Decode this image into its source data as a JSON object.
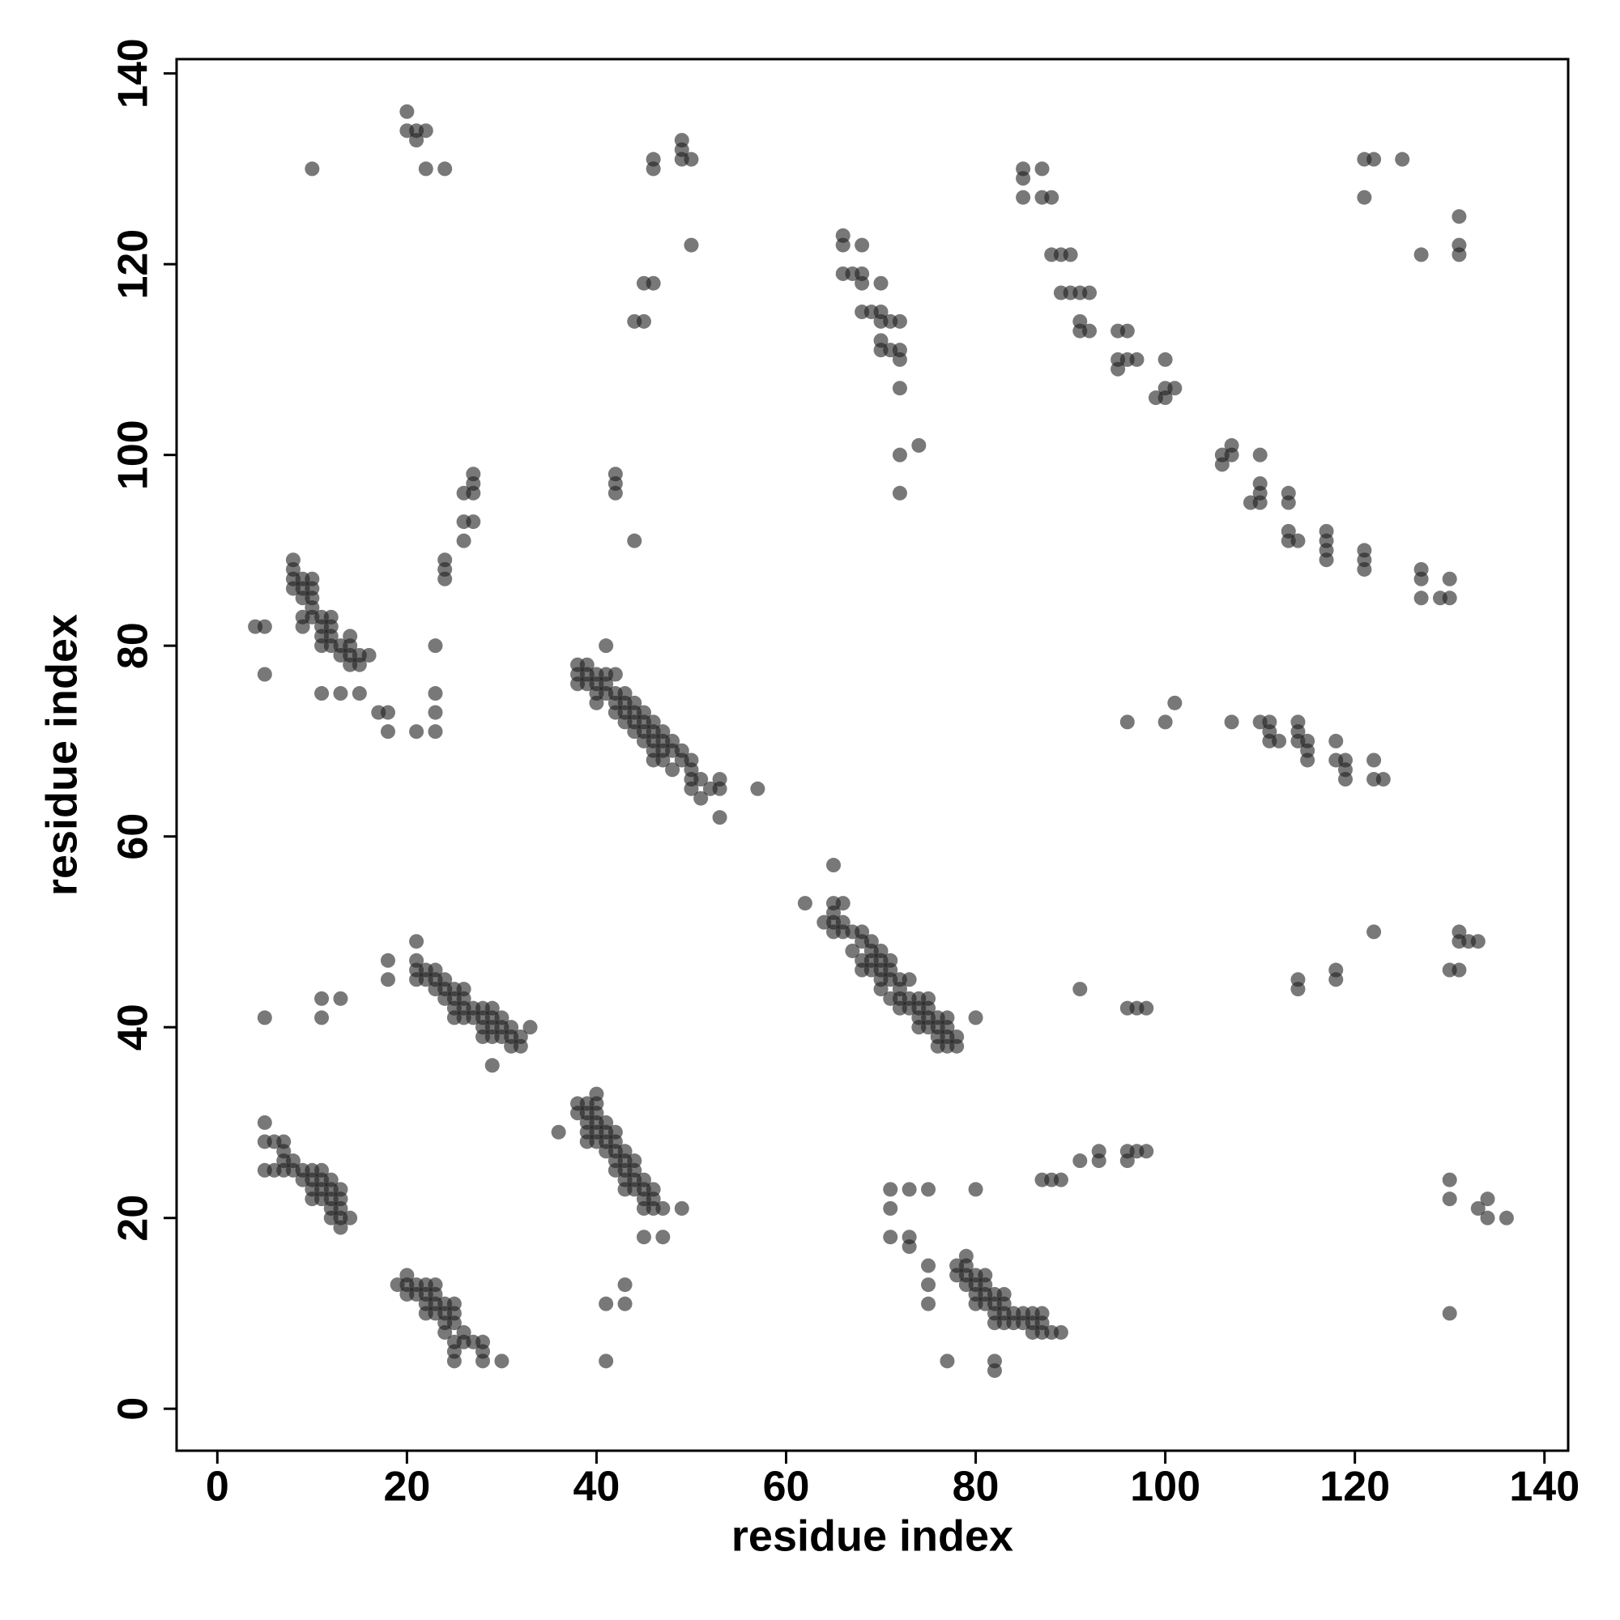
{
  "chart_data": {
    "type": "scatter",
    "xlabel": "residue index",
    "ylabel": "residue index",
    "xlim": [
      -4.3,
      142.5
    ],
    "ylim": [
      -4.4,
      141.5
    ],
    "xticks": [
      0,
      20,
      40,
      60,
      80,
      100,
      120,
      140
    ],
    "yticks": [
      0,
      20,
      40,
      60,
      80,
      100,
      120,
      140
    ],
    "grid": false,
    "series": [
      {
        "color": "rgba(30,30,30,0.6)",
        "x": [
          10,
          20,
          20,
          21,
          21,
          22,
          22,
          24,
          46,
          46,
          49,
          49,
          49,
          50,
          50,
          44,
          45,
          45,
          46,
          42,
          42,
          42,
          44,
          27,
          27,
          27,
          26,
          26,
          27,
          26,
          24,
          24,
          24,
          23,
          23,
          23,
          23,
          21,
          18,
          17,
          18,
          8,
          8,
          8,
          8,
          9,
          9,
          9,
          9,
          9,
          10,
          10,
          10,
          10,
          10,
          11,
          11,
          11,
          11,
          12,
          12,
          12,
          12,
          13,
          13,
          14,
          14,
          14,
          15,
          16,
          14,
          15,
          4,
          5,
          5,
          11,
          13,
          15,
          38,
          38,
          38,
          39,
          39,
          39,
          40,
          40,
          40,
          40,
          41,
          41,
          41,
          42,
          42,
          42,
          42,
          43,
          43,
          43,
          43,
          44,
          44,
          44,
          44,
          45,
          45,
          45,
          45,
          46,
          46,
          46,
          46,
          46,
          47,
          47,
          47,
          47,
          48,
          48,
          48,
          49,
          49,
          50,
          50,
          50,
          50,
          51,
          51,
          52,
          53,
          53,
          53,
          57,
          41,
          66,
          66,
          66,
          67,
          68,
          68,
          68,
          68,
          69,
          70,
          70,
          70,
          70,
          70,
          71,
          71,
          72,
          72,
          72,
          72,
          72,
          72,
          74,
          85,
          85,
          85,
          87,
          87,
          88,
          88,
          89,
          90,
          89,
          90,
          91,
          92,
          91,
          91,
          92,
          95,
          96,
          95,
          95,
          96,
          97,
          99,
          100,
          100,
          100,
          101,
          106,
          106,
          107,
          107,
          110,
          109,
          110,
          110,
          110,
          113,
          113,
          113,
          113,
          114,
          117,
          117,
          117,
          117,
          121,
          121,
          121,
          127,
          127,
          127,
          129,
          130,
          130,
          121,
          122,
          125,
          121,
          127,
          131,
          131,
          131,
          96,
          100,
          101,
          107,
          110,
          111,
          111,
          111,
          112,
          114,
          114,
          114,
          115,
          115,
          115,
          118,
          118,
          119,
          119,
          119,
          122,
          122,
          123,
          62,
          65,
          64,
          65,
          65,
          65,
          65,
          66,
          66,
          66,
          67,
          67,
          68,
          68,
          68,
          68,
          69,
          69,
          69,
          69,
          70,
          70,
          70,
          70,
          70,
          71,
          71,
          71,
          71,
          72,
          72,
          72,
          72,
          73,
          73,
          73,
          74,
          74,
          74,
          74,
          75,
          75,
          75,
          75,
          76,
          76,
          76,
          76,
          77,
          77,
          77,
          77,
          78,
          78,
          80,
          91,
          96,
          97,
          98,
          114,
          114,
          118,
          118,
          122,
          130,
          131,
          131,
          131,
          132,
          133,
          18,
          18,
          21,
          21,
          21,
          21,
          22,
          22,
          23,
          23,
          23,
          24,
          24,
          24,
          25,
          25,
          25,
          25,
          26,
          26,
          26,
          26,
          27,
          27,
          28,
          28,
          28,
          28,
          29,
          29,
          29,
          29,
          29,
          30,
          30,
          30,
          31,
          31,
          32,
          32,
          33,
          31,
          5,
          11,
          11,
          13,
          5,
          5,
          5,
          6,
          6,
          7,
          7,
          7,
          7,
          8,
          8,
          9,
          9,
          10,
          10,
          10,
          10,
          11,
          11,
          11,
          11,
          12,
          12,
          12,
          12,
          12,
          13,
          13,
          13,
          13,
          13,
          14,
          36,
          38,
          38,
          39,
          39,
          39,
          39,
          39,
          40,
          40,
          40,
          40,
          40,
          40,
          41,
          41,
          41,
          41,
          42,
          42,
          42,
          42,
          42,
          43,
          43,
          43,
          43,
          43,
          44,
          44,
          44,
          44,
          45,
          45,
          45,
          45,
          46,
          46,
          46,
          47,
          49,
          45,
          47,
          19,
          20,
          20,
          20,
          21,
          21,
          22,
          22,
          22,
          22,
          23,
          23,
          23,
          23,
          24,
          24,
          24,
          24,
          25,
          25,
          25,
          25,
          25,
          25,
          26,
          26,
          27,
          28,
          28,
          28,
          30,
          41,
          41,
          43,
          43,
          71,
          71,
          71,
          73,
          73,
          73,
          75,
          75,
          75,
          75,
          77,
          78,
          78,
          79,
          79,
          79,
          79,
          80,
          80,
          80,
          80,
          81,
          81,
          81,
          81,
          82,
          82,
          82,
          82,
          82,
          82,
          83,
          83,
          83,
          83,
          84,
          84,
          85,
          85,
          86,
          86,
          86,
          87,
          87,
          87,
          88,
          89,
          80,
          87,
          88,
          89,
          91,
          93,
          93,
          96,
          96,
          97,
          98,
          130,
          130,
          130,
          133,
          134,
          134,
          136
        ],
        "values": [
          130,
          136,
          134,
          133,
          134,
          134,
          130,
          130,
          131,
          130,
          133,
          132,
          131,
          131,
          122,
          114,
          114,
          118,
          118,
          98,
          97,
          96,
          91,
          98,
          97,
          96,
          96,
          93,
          93,
          91,
          89,
          88,
          87,
          80,
          75,
          73,
          71,
          71,
          73,
          73,
          71,
          89,
          88,
          87,
          86,
          87,
          86,
          85,
          83,
          82,
          87,
          86,
          85,
          84,
          83,
          83,
          82,
          81,
          80,
          83,
          82,
          81,
          80,
          80,
          79,
          81,
          80,
          79,
          79,
          79,
          78,
          78,
          82,
          82,
          77,
          75,
          75,
          75,
          78,
          77,
          76,
          78,
          77,
          76,
          77,
          76,
          75,
          74,
          77,
          76,
          75,
          77,
          75,
          74,
          73,
          75,
          74,
          73,
          72,
          74,
          73,
          72,
          71,
          73,
          72,
          71,
          70,
          72,
          71,
          70,
          69,
          68,
          71,
          70,
          69,
          68,
          70,
          69,
          67,
          69,
          68,
          68,
          67,
          66,
          65,
          66,
          64,
          65,
          66,
          65,
          62,
          65,
          80,
          123,
          122,
          119,
          119,
          122,
          119,
          118,
          115,
          115,
          118,
          115,
          114,
          112,
          111,
          114,
          111,
          114,
          111,
          110,
          107,
          100,
          96,
          101,
          130,
          129,
          127,
          130,
          127,
          127,
          121,
          121,
          121,
          117,
          117,
          117,
          117,
          114,
          113,
          113,
          113,
          113,
          110,
          109,
          110,
          110,
          106,
          110,
          107,
          106,
          107,
          100,
          99,
          101,
          100,
          100,
          95,
          97,
          96,
          95,
          96,
          95,
          92,
          91,
          91,
          92,
          91,
          90,
          89,
          90,
          89,
          88,
          88,
          87,
          85,
          85,
          87,
          85,
          131,
          131,
          131,
          127,
          121,
          125,
          122,
          121,
          72,
          72,
          74,
          72,
          72,
          72,
          71,
          70,
          70,
          72,
          71,
          70,
          70,
          69,
          68,
          70,
          68,
          68,
          67,
          66,
          68,
          66,
          66,
          53,
          57,
          51,
          53,
          52,
          51,
          50,
          53,
          51,
          50,
          50,
          48,
          50,
          49,
          47,
          46,
          49,
          48,
          47,
          46,
          48,
          47,
          46,
          45,
          44,
          47,
          46,
          45,
          43,
          45,
          44,
          43,
          42,
          45,
          43,
          42,
          43,
          42,
          41,
          40,
          43,
          42,
          41,
          40,
          41,
          40,
          39,
          38,
          41,
          40,
          39,
          38,
          39,
          38,
          41,
          44,
          42,
          42,
          42,
          45,
          44,
          46,
          45,
          50,
          46,
          50,
          49,
          46,
          49,
          49,
          47,
          45,
          49,
          47,
          46,
          45,
          46,
          45,
          46,
          45,
          44,
          45,
          44,
          43,
          44,
          43,
          42,
          41,
          44,
          43,
          42,
          41,
          42,
          41,
          42,
          41,
          40,
          39,
          42,
          41,
          40,
          39,
          36,
          41,
          40,
          39,
          40,
          39,
          39,
          38,
          40,
          38,
          41,
          43,
          41,
          43,
          30,
          28,
          25,
          28,
          25,
          28,
          27,
          26,
          25,
          26,
          25,
          25,
          24,
          25,
          24,
          23,
          22,
          25,
          24,
          23,
          22,
          24,
          23,
          22,
          21,
          20,
          23,
          22,
          21,
          20,
          19,
          20,
          29,
          32,
          31,
          32,
          31,
          30,
          29,
          28,
          33,
          32,
          31,
          30,
          29,
          28,
          30,
          29,
          28,
          27,
          29,
          28,
          27,
          26,
          25,
          27,
          26,
          25,
          24,
          23,
          26,
          25,
          24,
          23,
          24,
          23,
          22,
          21,
          23,
          22,
          21,
          21,
          21,
          18,
          18,
          13,
          14,
          13,
          12,
          13,
          12,
          13,
          12,
          11,
          10,
          13,
          12,
          11,
          10,
          11,
          10,
          9,
          8,
          11,
          10,
          9,
          7,
          6,
          5,
          8,
          7,
          7,
          7,
          6,
          5,
          5,
          11,
          5,
          13,
          11,
          23,
          21,
          18,
          23,
          18,
          17,
          23,
          15,
          13,
          11,
          5,
          15,
          14,
          16,
          15,
          14,
          13,
          14,
          13,
          12,
          11,
          14,
          13,
          12,
          11,
          12,
          11,
          10,
          9,
          5,
          4,
          12,
          11,
          10,
          9,
          10,
          9,
          10,
          9,
          10,
          9,
          8,
          10,
          9,
          8,
          8,
          8,
          23,
          24,
          24,
          24,
          26,
          27,
          26,
          27,
          26,
          27,
          27,
          24,
          22,
          10,
          21,
          22,
          20,
          20
        ]
      }
    ]
  }
}
